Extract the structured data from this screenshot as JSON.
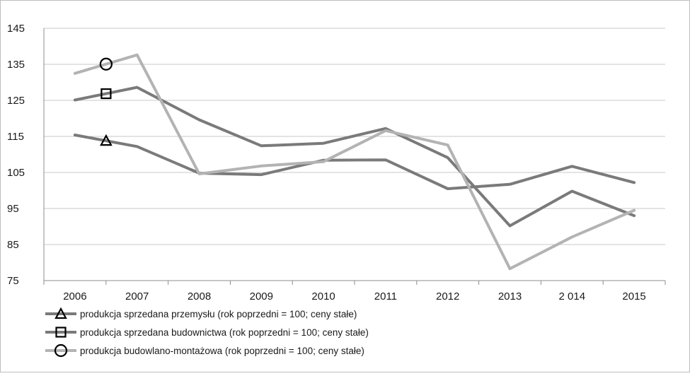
{
  "chart_data": {
    "type": "line",
    "title": "",
    "xlabel": "",
    "ylabel": "",
    "x": [
      "2006",
      "2007",
      "2008",
      "2009",
      "2010",
      "2011",
      "2012",
      "2013",
      "2 014",
      "2015"
    ],
    "ylim": [
      75,
      145
    ],
    "yticks": [
      "75",
      "85",
      "95",
      "105",
      "115",
      "125",
      "135",
      "145"
    ],
    "grid": "horizontal",
    "legend_position": "bottom-left",
    "series": [
      {
        "name": "produkcja sprzedana przemysłu (rok poprzedni = 100; ceny stałe)",
        "marker": "triangle",
        "color": "#7a7a7a",
        "values": [
          115.4,
          112.2,
          104.8,
          104.4,
          108.4,
          108.5,
          100.5,
          101.7,
          106.7,
          102.2
        ]
      },
      {
        "name": "produkcja sprzedana budownictwa (rok poprzedni = 100; ceny stałe)",
        "marker": "square",
        "color": "#7a7a7a",
        "values": [
          125.1,
          128.6,
          119.6,
          112.4,
          113.1,
          117.2,
          109.1,
          90.2,
          99.8,
          93.0
        ]
      },
      {
        "name": "produkcja budowlano-montażowa (rok poprzedni = 100; ceny stałe)",
        "marker": "circle",
        "color": "#b3b3b3",
        "values": [
          132.5,
          137.6,
          104.6,
          106.8,
          108.0,
          116.6,
          112.6,
          78.3,
          87.1,
          94.5
        ]
      }
    ]
  }
}
